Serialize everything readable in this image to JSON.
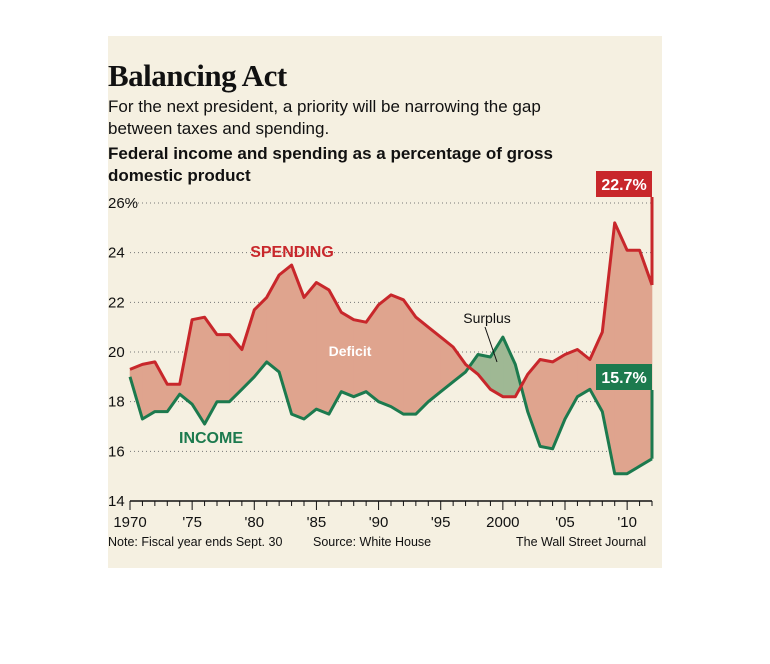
{
  "title": "Balancing Act",
  "subtitle": "For the next president, a priority will be narrowing the gap between taxes and spending.",
  "description": "Federal income and spending as a percentage of gross domestic product",
  "note": "Note: Fiscal year ends Sept. 30",
  "source": "Source: White House",
  "credit": "The Wall Street Journal",
  "colors": {
    "spending": "#c8272b",
    "income": "#1c7a4e",
    "deficit_fill": "#dfa48e",
    "surplus_fill": "#9fb894",
    "panel": "#f5f0e1"
  },
  "chart_data": {
    "type": "line",
    "ylim": [
      14,
      26
    ],
    "xlim": [
      1970,
      2012
    ],
    "yticks": [
      14,
      16,
      18,
      20,
      22,
      24,
      26
    ],
    "ytick_labels": [
      "14",
      "16",
      "18",
      "20",
      "22",
      "24",
      "26%"
    ],
    "xticks": [
      1970,
      1975,
      1980,
      1985,
      1990,
      1995,
      2000,
      2005,
      2010
    ],
    "xtick_labels": [
      "1970",
      "'75",
      "'80",
      "'85",
      "'90",
      "'95",
      "2000",
      "'05",
      "'10"
    ],
    "grid": true,
    "x": [
      1970,
      1971,
      1972,
      1973,
      1974,
      1975,
      1976,
      1977,
      1978,
      1979,
      1980,
      1981,
      1982,
      1983,
      1984,
      1985,
      1986,
      1987,
      1988,
      1989,
      1990,
      1991,
      1992,
      1993,
      1994,
      1995,
      1996,
      1997,
      1998,
      1999,
      2000,
      2001,
      2002,
      2003,
      2004,
      2005,
      2006,
      2007,
      2008,
      2009,
      2010,
      2011,
      2012
    ],
    "series": [
      {
        "name": "SPENDING",
        "values": [
          19.3,
          19.5,
          19.6,
          18.7,
          18.7,
          21.3,
          21.4,
          20.7,
          20.7,
          20.1,
          21.7,
          22.2,
          23.1,
          23.5,
          22.2,
          22.8,
          22.5,
          21.6,
          21.3,
          21.2,
          21.9,
          22.3,
          22.1,
          21.4,
          21.0,
          20.6,
          20.2,
          19.5,
          19.1,
          18.5,
          18.2,
          18.2,
          19.1,
          19.7,
          19.6,
          19.9,
          20.1,
          19.7,
          20.8,
          25.2,
          24.1,
          24.1,
          22.7
        ]
      },
      {
        "name": "INCOME",
        "values": [
          19.0,
          17.3,
          17.6,
          17.6,
          18.3,
          17.9,
          17.1,
          18.0,
          18.0,
          18.5,
          19.0,
          19.6,
          19.2,
          17.5,
          17.3,
          17.7,
          17.5,
          18.4,
          18.2,
          18.4,
          18.0,
          17.8,
          17.5,
          17.5,
          18.0,
          18.4,
          18.8,
          19.2,
          19.9,
          19.8,
          20.6,
          19.5,
          17.6,
          16.2,
          16.1,
          17.3,
          18.2,
          18.5,
          17.6,
          15.1,
          15.1,
          15.4,
          15.7
        ]
      }
    ],
    "annotations": [
      "SPENDING",
      "INCOME",
      "Deficit",
      "Surplus"
    ],
    "end_labels": [
      "22.7%",
      "15.7%"
    ]
  }
}
